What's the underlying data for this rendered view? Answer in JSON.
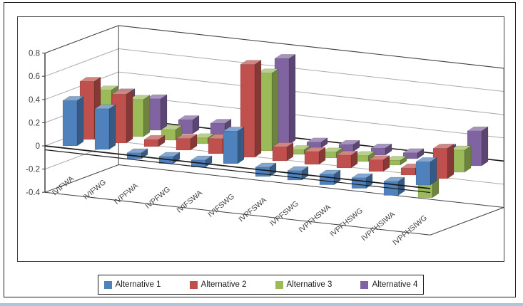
{
  "chart_data": {
    "type": "bar",
    "variant": "3d-clustered-column",
    "title": "",
    "xlabel": "",
    "ylabel": "",
    "categories": [
      "IVIFWA",
      "IVIFWG",
      "IVPFWA",
      "IVPFWG",
      "IVIFSWA",
      "IVIFSWG",
      "IVPFSWA",
      "IVPFSWG",
      "IVPFHSWA",
      "IVPFHSWG",
      "IVPFHSIWA",
      "IVPFHSIWG"
    ],
    "series": [
      {
        "name": "Alternative 1",
        "color": "#4F81BD",
        "values": [
          0.39,
          0.35,
          -0.05,
          -0.06,
          -0.06,
          0.28,
          -0.08,
          -0.08,
          -0.09,
          -0.09,
          -0.12,
          0.2
        ]
      },
      {
        "name": "Alternative 2",
        "color": "#C0504D",
        "values": [
          0.5,
          0.42,
          0.06,
          0.1,
          0.13,
          0.8,
          0.12,
          0.11,
          0.11,
          0.1,
          0.06,
          0.26
        ]
      },
      {
        "name": "Alternative 3",
        "color": "#9BBB59",
        "values": [
          0.37,
          0.32,
          0.09,
          0.05,
          0.11,
          0.67,
          0.04,
          0.05,
          0.05,
          0.04,
          -0.25,
          0.19
        ]
      },
      {
        "name": "Alternative 4",
        "color": "#8064A2",
        "values": [
          0.29,
          0.27,
          0.12,
          0.12,
          0.13,
          0.74,
          0.05,
          0.06,
          0.06,
          0.05,
          0.12,
          0.3
        ]
      }
    ],
    "ylim": [
      -0.4,
      0.8
    ],
    "y_ticks": [
      "0.8",
      "0.6",
      "0.4",
      "0.2",
      "0",
      "-0.2",
      "-0.4"
    ],
    "grid": true,
    "legend_position": "bottom"
  }
}
